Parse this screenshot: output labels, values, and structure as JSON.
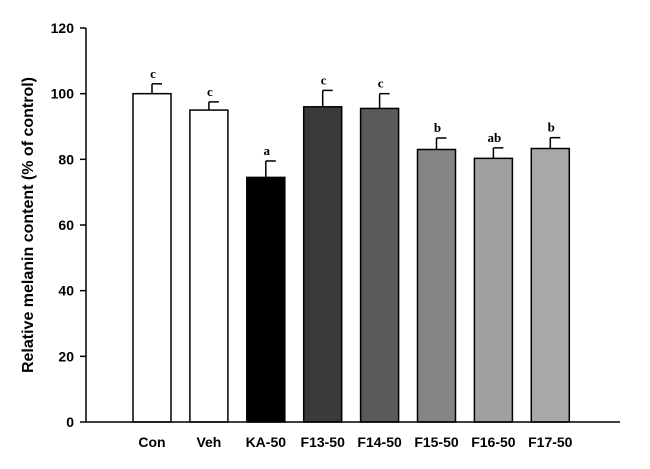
{
  "chart_data": {
    "type": "bar",
    "title": "",
    "xlabel": "",
    "ylabel": "Relative melanin content (% of control)",
    "ylim": [
      0,
      120
    ],
    "yticks": [
      0,
      20,
      40,
      60,
      80,
      100,
      120
    ],
    "grid": false,
    "categories": [
      "Con",
      "Veh",
      "KA-50",
      "F13-50",
      "F14-50",
      "F15-50",
      "F16-50",
      "F17-50"
    ],
    "values": [
      100,
      95,
      74.5,
      96,
      95.5,
      83,
      80.3,
      83.3
    ],
    "errors": [
      3,
      2.5,
      5,
      5,
      4.5,
      3.5,
      3.2,
      3.3
    ],
    "significance": [
      "c",
      "c",
      "a",
      "c",
      "c",
      "b",
      "ab",
      "b"
    ],
    "colors": [
      "#ffffff",
      "#ffffff",
      "#000000",
      "#3a3a3a",
      "#5a5a5a",
      "#858585",
      "#a0a0a0",
      "#a8a8a8"
    ]
  }
}
